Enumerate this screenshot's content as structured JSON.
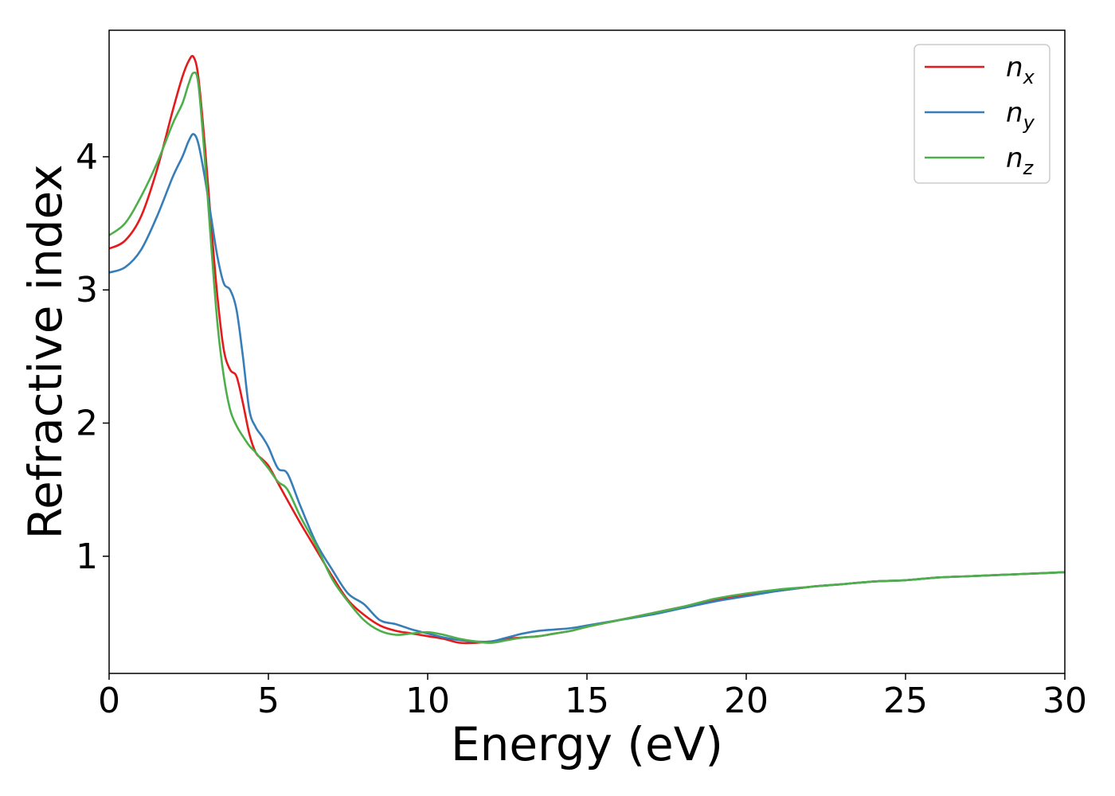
{
  "chart_data": {
    "type": "line",
    "title": "",
    "xlabel": "Energy (eV)",
    "ylabel": "Refractive index",
    "xlim": [
      0,
      30
    ],
    "ylim": [
      0.12,
      4.95
    ],
    "xticks": [
      0,
      5,
      10,
      15,
      20,
      25,
      30
    ],
    "yticks": [
      1,
      2,
      3,
      4
    ],
    "grid": false,
    "legend_position": "top-right",
    "series": [
      {
        "name": "n_x",
        "label_base": "n",
        "label_sub": "x",
        "color": "#e41a1c",
        "x": [
          0,
          0.5,
          1.0,
          1.5,
          2.0,
          2.3,
          2.5,
          2.65,
          2.8,
          3.0,
          3.2,
          3.4,
          3.6,
          3.8,
          4.0,
          4.2,
          4.4,
          4.6,
          4.8,
          5.0,
          5.3,
          5.6,
          6.0,
          6.5,
          7.0,
          7.5,
          8.0,
          8.5,
          9.0,
          9.5,
          10.0,
          10.5,
          11.0,
          11.5,
          12.0,
          12.5,
          13.0,
          13.5,
          14.0,
          14.5,
          15.0,
          16.0,
          17.0,
          18.0,
          19.0,
          20.0,
          21.0,
          22.0,
          23.0,
          24.0,
          25.0,
          26.0,
          27.0,
          28.0,
          29.0,
          30.0
        ],
        "y": [
          3.31,
          3.37,
          3.55,
          3.9,
          4.35,
          4.6,
          4.72,
          4.75,
          4.6,
          4.1,
          3.5,
          2.95,
          2.55,
          2.4,
          2.35,
          2.15,
          1.92,
          1.78,
          1.73,
          1.68,
          1.55,
          1.42,
          1.25,
          1.05,
          0.85,
          0.67,
          0.56,
          0.48,
          0.44,
          0.42,
          0.4,
          0.38,
          0.35,
          0.35,
          0.36,
          0.38,
          0.39,
          0.4,
          0.42,
          0.44,
          0.47,
          0.52,
          0.57,
          0.62,
          0.67,
          0.71,
          0.74,
          0.77,
          0.79,
          0.81,
          0.82,
          0.84,
          0.85,
          0.86,
          0.87,
          0.88
        ]
      },
      {
        "name": "n_y",
        "label_base": "n",
        "label_sub": "y",
        "color": "#377eb8",
        "x": [
          0,
          0.5,
          1.0,
          1.5,
          2.0,
          2.3,
          2.5,
          2.65,
          2.8,
          3.0,
          3.2,
          3.4,
          3.6,
          3.8,
          4.0,
          4.2,
          4.4,
          4.6,
          4.8,
          5.0,
          5.3,
          5.6,
          6.0,
          6.5,
          7.0,
          7.5,
          8.0,
          8.5,
          9.0,
          9.5,
          10.0,
          10.5,
          11.0,
          11.5,
          12.0,
          12.5,
          13.0,
          13.5,
          14.0,
          14.5,
          15.0,
          16.0,
          17.0,
          18.0,
          19.0,
          20.0,
          21.0,
          22.0,
          23.0,
          24.0,
          25.0,
          26.0,
          27.0,
          28.0,
          29.0,
          30.0
        ],
        "y": [
          3.13,
          3.17,
          3.3,
          3.55,
          3.85,
          4.0,
          4.12,
          4.17,
          4.1,
          3.85,
          3.55,
          3.25,
          3.05,
          3.0,
          2.85,
          2.5,
          2.1,
          1.97,
          1.9,
          1.82,
          1.66,
          1.62,
          1.38,
          1.1,
          0.9,
          0.72,
          0.64,
          0.52,
          0.49,
          0.45,
          0.42,
          0.39,
          0.37,
          0.36,
          0.36,
          0.39,
          0.42,
          0.44,
          0.45,
          0.46,
          0.48,
          0.52,
          0.56,
          0.61,
          0.66,
          0.7,
          0.74,
          0.77,
          0.79,
          0.81,
          0.82,
          0.84,
          0.85,
          0.86,
          0.87,
          0.88
        ]
      },
      {
        "name": "n_z",
        "label_base": "n",
        "label_sub": "z",
        "color": "#4daf4a",
        "x": [
          0,
          0.5,
          1.0,
          1.5,
          2.0,
          2.3,
          2.5,
          2.65,
          2.8,
          3.0,
          3.2,
          3.4,
          3.6,
          3.8,
          4.0,
          4.2,
          4.4,
          4.6,
          4.8,
          5.0,
          5.3,
          5.6,
          6.0,
          6.5,
          7.0,
          7.5,
          8.0,
          8.5,
          9.0,
          9.5,
          10.0,
          10.5,
          11.0,
          11.5,
          12.0,
          12.5,
          13.0,
          13.5,
          14.0,
          14.5,
          15.0,
          16.0,
          17.0,
          18.0,
          19.0,
          20.0,
          21.0,
          22.0,
          23.0,
          24.0,
          25.0,
          26.0,
          27.0,
          28.0,
          29.0,
          30.0
        ],
        "y": [
          3.41,
          3.5,
          3.7,
          3.95,
          4.25,
          4.4,
          4.55,
          4.63,
          4.55,
          4.0,
          3.35,
          2.75,
          2.35,
          2.1,
          1.98,
          1.9,
          1.83,
          1.78,
          1.72,
          1.66,
          1.56,
          1.5,
          1.3,
          1.08,
          0.83,
          0.66,
          0.52,
          0.44,
          0.41,
          0.42,
          0.43,
          0.41,
          0.38,
          0.36,
          0.35,
          0.37,
          0.39,
          0.4,
          0.42,
          0.44,
          0.47,
          0.52,
          0.57,
          0.62,
          0.68,
          0.72,
          0.75,
          0.77,
          0.79,
          0.81,
          0.82,
          0.84,
          0.85,
          0.86,
          0.87,
          0.88
        ]
      }
    ]
  }
}
